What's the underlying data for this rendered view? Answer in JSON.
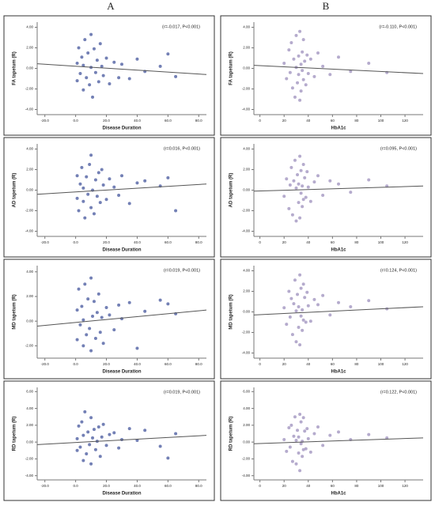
{
  "header": {
    "col_a": "A",
    "col_b": "B"
  },
  "chart_data": [
    {
      "type": "scatter",
      "x_label": "Disease Duration",
      "y_label": "FA tapetum (R)",
      "annotation": "(r=-0.017, P<0.001)",
      "color": "#5a6aa8",
      "line_color": "#555555",
      "xlim": [
        -25,
        85
      ],
      "ylim": [
        -4.5,
        4.5
      ],
      "xticks": [
        {
          "value": -20,
          "label": "-20.0"
        },
        {
          "value": 0,
          "label": "0.0"
        },
        {
          "value": 20,
          "label": "20.0"
        },
        {
          "value": 40,
          "label": "40.0"
        },
        {
          "value": 60,
          "label": "60.0"
        },
        {
          "value": 80,
          "label": "80.0"
        }
      ],
      "yticks": [
        {
          "value": 4,
          "label": "4.00"
        },
        {
          "value": 2,
          "label": "2.00"
        },
        {
          "value": 0,
          "label": "0.00"
        },
        {
          "value": -2,
          "label": "-2.00"
        },
        {
          "value": -4,
          "label": "-4.00"
        }
      ],
      "x": [
        1,
        1,
        2,
        3,
        4,
        5,
        5,
        6,
        7,
        8,
        9,
        10,
        10,
        11,
        12,
        13,
        14,
        15,
        16,
        17,
        18,
        20,
        22,
        25,
        28,
        30,
        35,
        40,
        45,
        55,
        60,
        65
      ],
      "values": [
        0.5,
        -1.2,
        2.0,
        -0.5,
        1.1,
        -2.1,
        0.3,
        2.8,
        -0.9,
        1.5,
        -1.6,
        3.3,
        0.1,
        -2.8,
        1.9,
        -0.4,
        0.8,
        -1.3,
        2.4,
        0.2,
        -0.7,
        1.0,
        -1.5,
        0.6,
        -0.9,
        0.4,
        -1.0,
        0.9,
        -0.3,
        0.2,
        1.4,
        -0.8
      ],
      "trend": {
        "x": [
          -25,
          85
        ],
        "y": [
          0.45,
          -0.6
        ]
      }
    },
    {
      "type": "scatter",
      "x_label": "Disease Duration",
      "y_label": "AD tapetum (R)",
      "annotation": "(r=0.016, P<0.001)",
      "color": "#5a6aa8",
      "line_color": "#555555",
      "xlim": [
        -25,
        85
      ],
      "ylim": [
        -4.5,
        4.5
      ],
      "xticks": [
        {
          "value": -20,
          "label": "-20.0"
        },
        {
          "value": 0,
          "label": "0.0"
        },
        {
          "value": 20,
          "label": "20.0"
        },
        {
          "value": 40,
          "label": "40.0"
        },
        {
          "value": 60,
          "label": "60.0"
        },
        {
          "value": 80,
          "label": "80.0"
        }
      ],
      "yticks": [
        {
          "value": 4,
          "label": "4.00"
        },
        {
          "value": 2,
          "label": "2.00"
        },
        {
          "value": 0,
          "label": "0.00"
        },
        {
          "value": -2,
          "label": "-2.00"
        },
        {
          "value": -4,
          "label": "-4.00"
        }
      ],
      "x": [
        1,
        1,
        2,
        3,
        4,
        5,
        5,
        6,
        7,
        8,
        9,
        10,
        10,
        11,
        12,
        13,
        14,
        15,
        16,
        17,
        18,
        20,
        22,
        25,
        28,
        30,
        35,
        40,
        45,
        55,
        60,
        65
      ],
      "values": [
        -0.8,
        1.4,
        -2.0,
        0.6,
        2.2,
        -1.1,
        0.2,
        -2.7,
        1.3,
        -0.4,
        2.5,
        -1.7,
        3.4,
        0.0,
        -2.3,
        1.0,
        -0.6,
        1.7,
        -1.2,
        2.0,
        0.5,
        -0.9,
        1.1,
        0.3,
        -0.5,
        1.4,
        -1.3,
        0.7,
        0.9,
        0.4,
        1.2,
        -2.0
      ],
      "trend": {
        "x": [
          -25,
          85
        ],
        "y": [
          -0.4,
          0.6
        ]
      }
    },
    {
      "type": "scatter",
      "x_label": "Disease Duration",
      "y_label": "MD tapetum (R)",
      "annotation": "(r=0.019, P<0.001)",
      "color": "#5a6aa8",
      "line_color": "#555555",
      "xlim": [
        -25,
        85
      ],
      "ylim": [
        -3,
        4.5
      ],
      "xticks": [
        {
          "value": -20,
          "label": "-20.0"
        },
        {
          "value": 0,
          "label": "0.0"
        },
        {
          "value": 20,
          "label": "20.0"
        },
        {
          "value": 40,
          "label": "40.0"
        },
        {
          "value": 60,
          "label": "60.0"
        },
        {
          "value": 80,
          "label": "80.0"
        }
      ],
      "yticks": [
        {
          "value": 4,
          "label": "4.00"
        },
        {
          "value": 2,
          "label": "2.00"
        },
        {
          "value": 0,
          "label": "0.00"
        },
        {
          "value": -2,
          "label": "-2.00"
        }
      ],
      "x": [
        1,
        1,
        2,
        3,
        4,
        5,
        5,
        6,
        7,
        8,
        9,
        10,
        10,
        11,
        12,
        13,
        14,
        15,
        16,
        17,
        18,
        20,
        22,
        25,
        28,
        30,
        35,
        40,
        45,
        55,
        60,
        65
      ],
      "values": [
        0.9,
        -1.5,
        2.6,
        -0.3,
        1.2,
        -2.0,
        0.1,
        3.0,
        -1.1,
        1.8,
        -0.6,
        3.5,
        -2.4,
        0.4,
        1.6,
        -1.4,
        0.7,
        2.2,
        -0.9,
        0.3,
        -1.8,
        1.1,
        0.5,
        -0.7,
        1.3,
        0.2,
        1.5,
        -2.2,
        0.8,
        1.7,
        1.4,
        0.6
      ],
      "trend": {
        "x": [
          -25,
          85
        ],
        "y": [
          -0.4,
          0.9
        ]
      }
    },
    {
      "type": "scatter",
      "x_label": "Disease Duration",
      "y_label": "RD tapetum (R)",
      "annotation": "(r=0.019, P<0.001)",
      "color": "#5a6aa8",
      "line_color": "#555555",
      "xlim": [
        -25,
        85
      ],
      "ylim": [
        -4.5,
        6.5
      ],
      "xticks": [
        {
          "value": -20,
          "label": "-20.0"
        },
        {
          "value": 0,
          "label": "0.0"
        },
        {
          "value": 20,
          "label": "20.0"
        },
        {
          "value": 40,
          "label": "40.0"
        },
        {
          "value": 60,
          "label": "60.0"
        },
        {
          "value": 80,
          "label": "80.0"
        }
      ],
      "yticks": [
        {
          "value": 6,
          "label": "6.00"
        },
        {
          "value": 4,
          "label": "4.00"
        },
        {
          "value": 2,
          "label": "2.00"
        },
        {
          "value": 0,
          "label": "0.00"
        },
        {
          "value": -2,
          "label": "-2.00"
        },
        {
          "value": -4,
          "label": "-4.00"
        }
      ],
      "x": [
        1,
        1,
        2,
        3,
        4,
        5,
        5,
        6,
        7,
        8,
        9,
        10,
        10,
        11,
        12,
        13,
        14,
        15,
        16,
        17,
        18,
        20,
        22,
        25,
        28,
        30,
        35,
        40,
        45,
        55,
        60,
        65
      ],
      "values": [
        0.4,
        -1.0,
        1.9,
        -0.6,
        2.4,
        -2.2,
        0.8,
        3.6,
        -1.4,
        1.2,
        -0.3,
        2.9,
        -2.6,
        0.5,
        1.5,
        -0.9,
        0.1,
        1.8,
        -1.7,
        0.6,
        2.1,
        -0.4,
        0.9,
        1.1,
        -0.7,
        0.3,
        1.6,
        0.2,
        1.4,
        -0.5,
        -1.9,
        1.0
      ],
      "trend": {
        "x": [
          -25,
          85
        ],
        "y": [
          -0.3,
          0.8
        ]
      }
    },
    {
      "type": "scatter",
      "x_label": "HbA1c",
      "y_label": "FA tapetum (R)",
      "annotation": "(r=-0.110, P<0.001)",
      "color": "#a89cc4",
      "line_color": "#555555",
      "xlim": [
        -5,
        135
      ],
      "ylim": [
        -4.5,
        4.5
      ],
      "xticks": [
        0,
        20,
        40,
        60,
        80,
        100,
        120
      ],
      "yticks": [
        {
          "value": 4,
          "label": "4.00"
        },
        {
          "value": 2,
          "label": "2.00"
        },
        {
          "value": 0,
          "label": "0.00"
        },
        {
          "value": -2,
          "label": "-2.00"
        },
        {
          "value": -4,
          "label": "-4.00"
        }
      ],
      "x": [
        20,
        22,
        24,
        25,
        26,
        27,
        28,
        29,
        30,
        30,
        31,
        32,
        32,
        33,
        33,
        34,
        34,
        35,
        35,
        36,
        36,
        37,
        38,
        39,
        40,
        42,
        45,
        48,
        52,
        58,
        65,
        75,
        90,
        105
      ],
      "values": [
        0.5,
        -1.0,
        1.8,
        -0.4,
        2.5,
        -1.9,
        0.9,
        -2.8,
        3.2,
        0.1,
        -1.4,
        1.2,
        -0.6,
        3.6,
        -3.1,
        0.4,
        -2.2,
        1.6,
        -0.2,
        2.8,
        -1.1,
        0.7,
        -1.6,
        1.3,
        -0.5,
        0.9,
        -0.8,
        1.5,
        0.2,
        -0.6,
        1.1,
        -0.3,
        0.5,
        -0.4
      ],
      "trend": {
        "x": [
          -5,
          135
        ],
        "y": [
          0.3,
          -0.5
        ]
      }
    },
    {
      "type": "scatter",
      "x_label": "HbA1c",
      "y_label": "AD tapetum (R)",
      "annotation": "(r=0.095, P<0.001)",
      "color": "#a89cc4",
      "line_color": "#555555",
      "xlim": [
        -5,
        135
      ],
      "ylim": [
        -4.5,
        4.5
      ],
      "xticks": [
        0,
        20,
        40,
        60,
        80,
        100,
        120
      ],
      "yticks": [
        {
          "value": 4,
          "label": "4.00"
        },
        {
          "value": 2,
          "label": "2.00"
        },
        {
          "value": 0,
          "label": "0.00"
        },
        {
          "value": -2,
          "label": "-2.00"
        },
        {
          "value": -4,
          "label": "-4.00"
        }
      ],
      "x": [
        20,
        22,
        24,
        25,
        26,
        27,
        28,
        29,
        30,
        30,
        31,
        32,
        32,
        33,
        33,
        34,
        34,
        35,
        35,
        36,
        36,
        37,
        38,
        39,
        40,
        42,
        45,
        48,
        52,
        58,
        65,
        75,
        90,
        105
      ],
      "values": [
        -0.6,
        1.1,
        -1.8,
        0.5,
        2.2,
        -2.4,
        0.9,
        2.9,
        -3.0,
        0.2,
        1.5,
        -1.2,
        0.6,
        3.3,
        -2.7,
        -0.3,
        1.9,
        -1.6,
        0.4,
        2.5,
        -0.9,
        1.2,
        -0.7,
        1.8,
        0.3,
        -1.1,
        0.8,
        1.4,
        -0.5,
        0.9,
        0.6,
        -0.2,
        1.0,
        0.4
      ],
      "trend": {
        "x": [
          -5,
          135
        ],
        "y": [
          -0.1,
          0.4
        ]
      }
    },
    {
      "type": "scatter",
      "x_label": "HbA1c",
      "y_label": "MD tapetum (R)",
      "annotation": "(r=0.124, P<0.001)",
      "color": "#a89cc4",
      "line_color": "#555555",
      "xlim": [
        -5,
        135
      ],
      "ylim": [
        -4.5,
        4.5
      ],
      "xticks": [
        0,
        20,
        40,
        60,
        80,
        100,
        120
      ],
      "yticks": [
        {
          "value": 4,
          "label": "4.00"
        },
        {
          "value": 2,
          "label": "2.00"
        },
        {
          "value": 0,
          "label": "0.00"
        },
        {
          "value": -2,
          "label": "-2.00"
        },
        {
          "value": -4,
          "label": "-4.00"
        }
      ],
      "x": [
        20,
        22,
        24,
        25,
        26,
        27,
        28,
        29,
        30,
        30,
        31,
        32,
        32,
        33,
        33,
        34,
        34,
        35,
        35,
        36,
        36,
        37,
        38,
        39,
        40,
        42,
        45,
        48,
        52,
        58,
        65,
        75,
        90,
        105
      ],
      "values": [
        0.4,
        -1.2,
        2.0,
        -0.5,
        1.3,
        -2.2,
        0.8,
        3.1,
        -2.9,
        0.1,
        1.7,
        -1.5,
        0.5,
        3.6,
        -3.2,
        -0.4,
        2.3,
        -1.8,
        0.2,
        2.7,
        -0.8,
        1.4,
        -1.0,
        1.9,
        0.6,
        -0.9,
        1.2,
        0.7,
        1.6,
        -0.3,
        0.9,
        0.5,
        1.1,
        0.3
      ],
      "trend": {
        "x": [
          -5,
          135
        ],
        "y": [
          -0.3,
          0.5
        ]
      }
    },
    {
      "type": "scatter",
      "x_label": "HbA1c",
      "y_label": "RD tapetum (R)",
      "annotation": "(r=0.122, P<0.001)",
      "color": "#a89cc4",
      "line_color": "#555555",
      "xlim": [
        -5,
        135
      ],
      "ylim": [
        -4.5,
        6.5
      ],
      "xticks": [
        0,
        20,
        40,
        60,
        80,
        100,
        120
      ],
      "yticks": [
        {
          "value": 6,
          "label": "6.00"
        },
        {
          "value": 4,
          "label": "4.00"
        },
        {
          "value": 2,
          "label": "2.00"
        },
        {
          "value": 0,
          "label": "0.00"
        },
        {
          "value": -2,
          "label": "-2.00"
        },
        {
          "value": -4,
          "label": "-4.00"
        }
      ],
      "x": [
        20,
        22,
        24,
        25,
        26,
        27,
        28,
        29,
        30,
        30,
        31,
        32,
        32,
        33,
        33,
        34,
        34,
        35,
        35,
        36,
        36,
        37,
        38,
        39,
        40,
        42,
        45,
        48,
        52,
        58,
        65,
        75,
        90,
        105
      ],
      "values": [
        0.3,
        -1.1,
        1.7,
        -0.6,
        2.0,
        -2.3,
        0.7,
        3.0,
        -2.6,
        0.2,
        1.4,
        -1.3,
        0.6,
        3.3,
        -3.4,
        -0.2,
        2.4,
        -1.7,
        0.1,
        2.9,
        -0.9,
        1.3,
        -0.8,
        1.6,
        0.4,
        -1.2,
        1.0,
        1.8,
        -0.4,
        0.8,
        1.2,
        0.3,
        0.9,
        0.5
      ],
      "trend": {
        "x": [
          -5,
          135
        ],
        "y": [
          -0.2,
          0.5
        ]
      }
    }
  ]
}
